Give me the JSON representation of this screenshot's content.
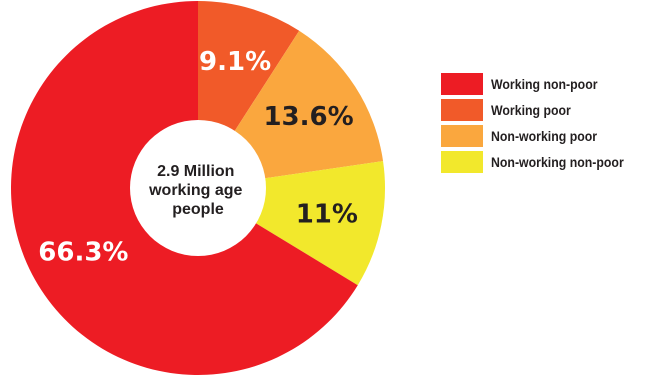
{
  "chart_data": {
    "type": "pie",
    "donut": true,
    "center_text": [
      "2.9 Million",
      "working age",
      "people"
    ],
    "categories": [
      "Working non-poor",
      "Working poor",
      "Non-working poor",
      "Non-working non-poor"
    ],
    "values": [
      66.3,
      9.1,
      13.6,
      11
    ],
    "labels": [
      "66.3%",
      "9.1%",
      "13.6%",
      "11%"
    ],
    "colors": [
      "#ed1c24",
      "#f15a29",
      "#faa73e",
      "#f2e82c"
    ],
    "label_colors": [
      "#ffffff",
      "#ffffff",
      "#231f20",
      "#231f20"
    ],
    "legend_position": "right",
    "start_angle": "top",
    "direction": "clockwise",
    "slice_order": [
      1,
      2,
      3,
      0
    ]
  }
}
